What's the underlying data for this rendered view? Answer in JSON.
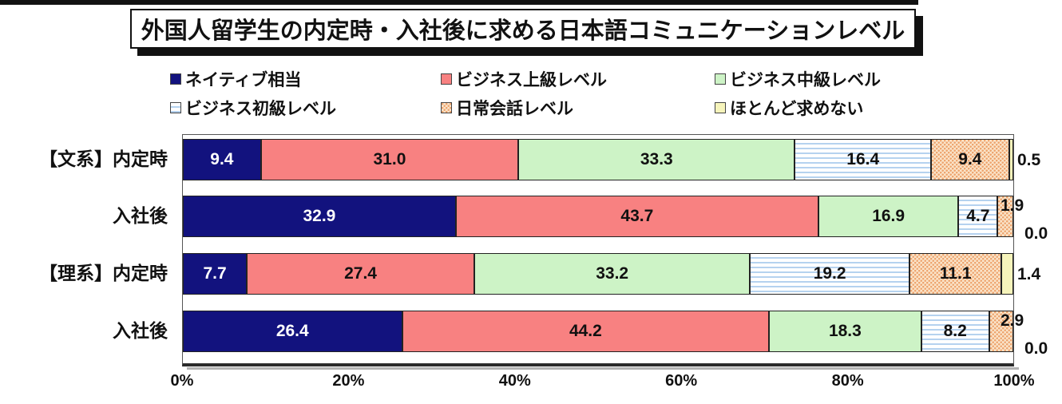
{
  "page": {
    "background": "#ffffff",
    "top_bar_color": "#121212"
  },
  "title_box": {
    "text": "外国人留学生の内定時・入社後に求める日本語コミュニケーションレベル",
    "border_color": "#111111",
    "shadow_color": "#111111",
    "background": "#ffffff"
  },
  "chart_data": {
    "type": "bar",
    "stacked": true,
    "orientation": "horizontal",
    "unit": "%",
    "grid": false,
    "legend_position": "top",
    "categories": [
      "【文系】内定時",
      "入社後",
      "【理系】内定時",
      "入社後"
    ],
    "series": [
      {
        "name": "ネイティブ相当",
        "values": [
          9.4,
          32.9,
          7.7,
          26.4
        ],
        "color": "#12127e",
        "pattern": "solid",
        "label_color": "#ffffff"
      },
      {
        "name": "ビジネス上級レベル",
        "values": [
          31.0,
          43.7,
          27.4,
          44.2
        ],
        "color": "#f88181",
        "pattern": "solid",
        "label_color": "#111111"
      },
      {
        "name": "ビジネス中級レベル",
        "values": [
          33.3,
          16.9,
          33.2,
          18.3
        ],
        "color": "#cdf3c6",
        "pattern": "solid",
        "label_color": "#111111"
      },
      {
        "name": "ビジネス初級レベル",
        "values": [
          16.4,
          4.7,
          19.2,
          8.2
        ],
        "color": "#ffffff",
        "accent_color": "#b5d2ef",
        "pattern": "hstripes",
        "label_color": "#111111"
      },
      {
        "name": "日常会話レベル",
        "values": [
          9.4,
          1.9,
          11.1,
          2.9
        ],
        "color": "#fae3c8",
        "accent_color": "#eda26b",
        "pattern": "dots",
        "label_color": "#111111"
      },
      {
        "name": "ほとんど求めない",
        "values": [
          0.5,
          0.0,
          1.4,
          0.0
        ],
        "color": "#f6f4bb",
        "pattern": "solid",
        "label_color": "#111111"
      }
    ],
    "x_ticks": [
      "0%",
      "20%",
      "40%",
      "60%",
      "80%",
      "100%"
    ],
    "xlim": [
      0,
      100
    ]
  }
}
